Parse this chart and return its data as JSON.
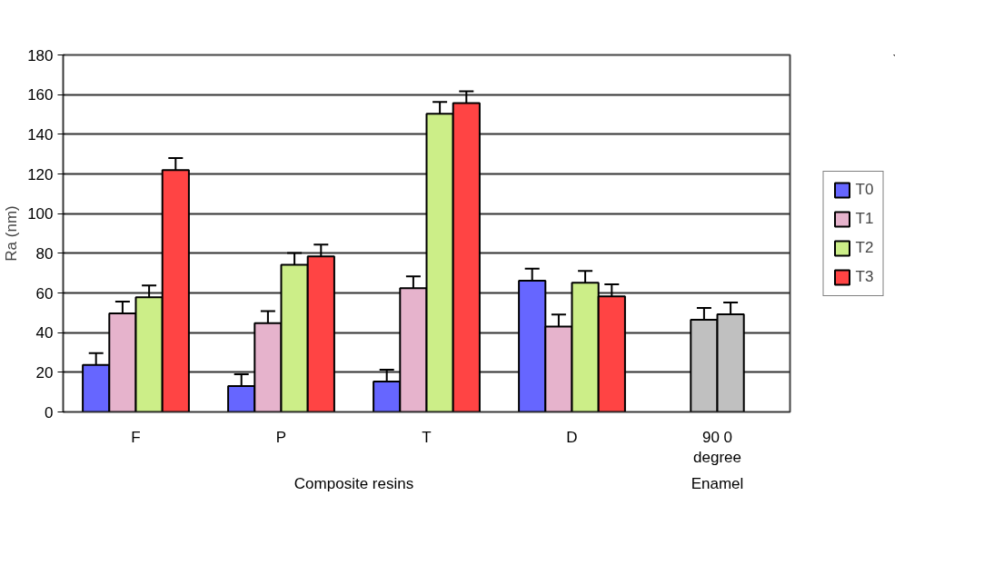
{
  "chart_data": {
    "type": "bar",
    "ylabel": "Ra (nm)",
    "categories": [
      "F",
      "P",
      "T",
      "D",
      "90 0\ndegree"
    ],
    "series": [
      {
        "name": "T0",
        "color": "#6666ff",
        "values": [
          23.7,
          13,
          15.3,
          66.2,
          null
        ],
        "errors": [
          6,
          6,
          6,
          6,
          null
        ]
      },
      {
        "name": "T1",
        "color": "#e6b3cc",
        "colors": [
          "#e6b3cc",
          "#e6b3cc",
          "#e6b3cc",
          "#e6b3cc",
          "#c0c0c0"
        ],
        "values": [
          49.7,
          44.8,
          62.4,
          43.1,
          46.5
        ],
        "errors": [
          6,
          6,
          6,
          6,
          6
        ]
      },
      {
        "name": "T2",
        "color": "#ccee88",
        "colors": [
          "#ccee88",
          "#ccee88",
          "#ccee88",
          "#ccee88",
          "#c0c0c0"
        ],
        "values": [
          57.8,
          74.2,
          150.3,
          65.1,
          49.2
        ],
        "errors": [
          6,
          6,
          6,
          6,
          6
        ]
      },
      {
        "name": "T3",
        "color": "#ff4444",
        "values": [
          122,
          78.4,
          155.7,
          58.3,
          null
        ],
        "errors": [
          6,
          6,
          6,
          6,
          null
        ]
      }
    ],
    "annotations": [
      "Composite resins",
      "Enamel"
    ],
    "ylim": [
      0,
      180
    ],
    "yticks": [
      0,
      20,
      40,
      60,
      80,
      100,
      120,
      140,
      160,
      180
    ],
    "grid": "y",
    "legend": "right"
  }
}
